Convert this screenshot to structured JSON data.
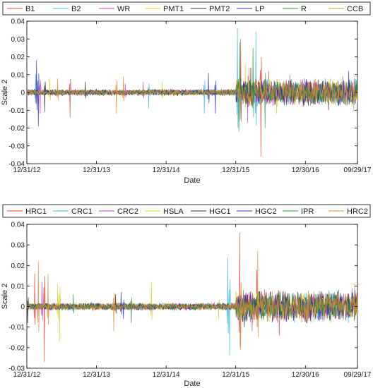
{
  "chart_data": [
    {
      "type": "line",
      "panel": "top",
      "xlabel": "Date",
      "ylabel": "Scale 2",
      "x_ticks": [
        "12/31/12",
        "12/31/13",
        "12/31/14",
        "12/31/15",
        "12/30/16",
        "09/29/17"
      ],
      "xlim": [
        "12/31/12",
        "09/29/17"
      ],
      "ylim": [
        -0.04,
        0.04
      ],
      "y_ticks": [
        "-0.04",
        "-0.03",
        "-0.02",
        "-0.01",
        "0",
        "0.01",
        "0.02",
        "0.03",
        "0.04"
      ],
      "legend_placement": "top",
      "series": [
        {
          "name": "B1",
          "color": "#e8413c",
          "spikes": [
            [
              "08/15/13",
              -0.014
            ],
            [
              "09/01/14",
              0.006
            ],
            [
              "01/25/16",
              0.03
            ],
            [
              "05/10/16",
              -0.036
            ],
            [
              "06/20/16",
              0.012
            ]
          ]
        },
        {
          "name": "B2",
          "color": "#3cb8e0",
          "spikes": [
            [
              "02/15/13",
              0.01
            ],
            [
              "10/01/14",
              -0.009
            ],
            [
              "07/20/15",
              -0.012
            ],
            [
              "01/10/16",
              0.036
            ],
            [
              "04/15/16",
              0.034
            ]
          ]
        },
        {
          "name": "WR",
          "color": "#d03cd0",
          "spikes": [
            [
              "03/10/13",
              -0.012
            ],
            [
              "06/01/14",
              0.005
            ],
            [
              "03/01/16",
              -0.017
            ],
            [
              "10/10/16",
              0.01
            ]
          ]
        },
        {
          "name": "PMT1",
          "color": "#d4d422",
          "spikes": [
            [
              "05/01/13",
              0.008
            ],
            [
              "12/10/14",
              0.006
            ],
            [
              "02/20/16",
              0.016
            ],
            [
              "08/01/16",
              -0.012
            ]
          ]
        },
        {
          "name": "PMT2",
          "color": "#303030",
          "spikes": [
            [
              "04/05/13",
              -0.011
            ],
            [
              "11/01/13",
              0.006
            ],
            [
              "03/20/16",
              0.014
            ],
            [
              "05/01/17",
              -0.01
            ]
          ]
        },
        {
          "name": "LP",
          "color": "#3030c8",
          "spikes": [
            [
              "02/20/13",
              0.018
            ],
            [
              "03/01/13",
              -0.019
            ],
            [
              "08/10/15",
              0.011
            ],
            [
              "09/15/15",
              -0.012
            ],
            [
              "08/15/17",
              0.012
            ]
          ]
        },
        {
          "name": "R",
          "color": "#2a9a3a",
          "spikes": [
            [
              "01/15/16",
              -0.022
            ],
            [
              "01/20/16",
              0.028
            ],
            [
              "04/01/16",
              0.025
            ],
            [
              "06/01/16",
              -0.02
            ],
            [
              "07/15/17",
              0.009
            ]
          ]
        },
        {
          "name": "CCB",
          "color": "#e08a30",
          "spikes": [
            [
              "06/10/13",
              0.008
            ],
            [
              "04/15/14",
              -0.012
            ],
            [
              "05/20/14",
              0.009
            ],
            [
              "03/10/16",
              0.014
            ],
            [
              "09/10/17",
              -0.01
            ]
          ]
        }
      ]
    },
    {
      "type": "line",
      "panel": "bottom",
      "xlabel": "Date",
      "ylabel": "Scale 2",
      "x_ticks": [
        "12/31/12",
        "12/31/13",
        "12/31/14",
        "12/31/15",
        "12/30/16",
        "09/29/17"
      ],
      "xlim": [
        "12/31/12",
        "09/29/17"
      ],
      "ylim": [
        -0.03,
        0.04
      ],
      "y_ticks": [
        "-0.03",
        "-0.02",
        "-0.01",
        "0",
        "0.01",
        "0.02",
        "0.03",
        "0.04"
      ],
      "legend_placement": "top",
      "series": [
        {
          "name": "HRC1",
          "color": "#e8413c",
          "spikes": [
            [
              "02/10/13",
              0.016
            ],
            [
              "04/01/13",
              -0.027
            ],
            [
              "01/20/16",
              0.036
            ],
            [
              "04/20/16",
              0.018
            ],
            [
              "08/15/16",
              -0.014
            ]
          ]
        },
        {
          "name": "CRC1",
          "color": "#3cb8e0",
          "spikes": [
            [
              "11/20/15",
              0.024
            ],
            [
              "11/28/15",
              -0.024
            ],
            [
              "05/01/17",
              0.008
            ]
          ]
        },
        {
          "name": "CRC2",
          "color": "#d03cd0",
          "spikes": [
            [
              "03/20/13",
              0.012
            ],
            [
              "03/25/16",
              -0.012
            ],
            [
              "09/01/17",
              0.009
            ]
          ]
        },
        {
          "name": "HSLA",
          "color": "#d4d422",
          "spikes": [
            [
              "06/10/13",
              0.011
            ],
            [
              "06/20/13",
              -0.017
            ],
            [
              "10/15/14",
              0.012
            ],
            [
              "10/01/15",
              -0.006
            ]
          ]
        },
        {
          "name": "HGC1",
          "color": "#303030",
          "spikes": [
            [
              "01/05/13",
              -0.008
            ],
            [
              "04/10/14",
              0.006
            ],
            [
              "02/15/16",
              -0.01
            ],
            [
              "05/01/17",
              0.006
            ]
          ]
        },
        {
          "name": "HGC2",
          "color": "#3030c8",
          "spikes": [
            [
              "05/10/14",
              0.007
            ],
            [
              "05/20/14",
              -0.006
            ],
            [
              "03/01/17",
              0.005
            ]
          ]
        },
        {
          "name": "IPR",
          "color": "#2a9a3a",
          "spikes": [
            [
              "09/01/13",
              0.006
            ],
            [
              "07/01/14",
              -0.008
            ],
            [
              "02/10/16",
              0.008
            ]
          ]
        },
        {
          "name": "HRC2",
          "color": "#e08a30",
          "spikes": [
            [
              "03/01/13",
              0.022
            ],
            [
              "04/20/13",
              0.016
            ],
            [
              "04/01/14",
              -0.012
            ],
            [
              "01/25/16",
              -0.021
            ],
            [
              "04/25/16",
              0.027
            ],
            [
              "09/15/17",
              0.011
            ]
          ]
        }
      ]
    }
  ]
}
